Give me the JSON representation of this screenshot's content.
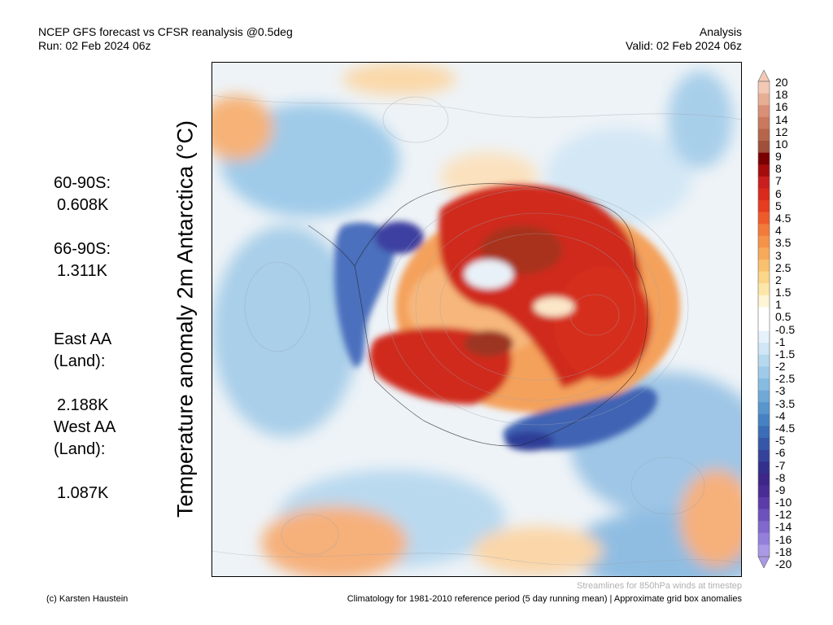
{
  "header": {
    "title_line1": "NCEP GFS forecast vs CFSR reanalysis @0.5deg",
    "title_line2": "Run: 02 Feb 2024 06z",
    "right_line1": "Analysis",
    "right_line2": "Valid: 02 Feb 2024 06z"
  },
  "stats": [
    {
      "label": "60-90S:",
      "value": "0.608K"
    },
    {
      "label": "66-90S:",
      "value": "1.311K"
    },
    {
      "label": "East AA\n(Land):",
      "value": "2.188K"
    },
    {
      "label": "West AA\n(Land):",
      "value": "1.087K"
    }
  ],
  "map": {
    "title": "Temperature anomaly 2m Antarctica (°C)",
    "colorbar": {
      "labels": [
        "20",
        "18",
        "16",
        "14",
        "12",
        "10",
        "9",
        "8",
        "7",
        "6",
        "5",
        "4.5",
        "4",
        "3.5",
        "3",
        "2.5",
        "2",
        "1.5",
        "1",
        "0.5",
        "-0.5",
        "-1",
        "-1.5",
        "-2",
        "-2.5",
        "-3",
        "-3.5",
        "-4",
        "-4.5",
        "-5",
        "-6",
        "-7",
        "-8",
        "-9",
        "-10",
        "-12",
        "-14",
        "-16",
        "-18",
        "-20"
      ],
      "colors": [
        "#f3c9b6",
        "#e6ae94",
        "#d99076",
        "#c8795d",
        "#b4654a",
        "#9e5038",
        "#7a0000",
        "#a50d0d",
        "#c81e1e",
        "#d92a1c",
        "#e63c20",
        "#ee5a2a",
        "#f27a3a",
        "#f5934a",
        "#f7a95a",
        "#f9c06e",
        "#fbd588",
        "#fde7a8",
        "#fef5d6",
        "#ffffff",
        "#ffffff",
        "#e6f2fb",
        "#cfe6f6",
        "#b7d9f0",
        "#9fcbe9",
        "#87bce2",
        "#6fa9d8",
        "#5896cd",
        "#4682c1",
        "#3a6db6",
        "#3657a8",
        "#35429b",
        "#33308d",
        "#3d2688",
        "#4a2c95",
        "#5b3ca8",
        "#6d52bc",
        "#8068cd",
        "#947fdb",
        "#aa99e6"
      ]
    }
  },
  "footer": {
    "streamlines": "Streamlines for 850hPa winds at timestep",
    "copyright": "(c) Karsten Haustein",
    "climatology": "Climatology for 1981-2010 reference period (5 day running mean) | Approximate grid box anomalies"
  }
}
